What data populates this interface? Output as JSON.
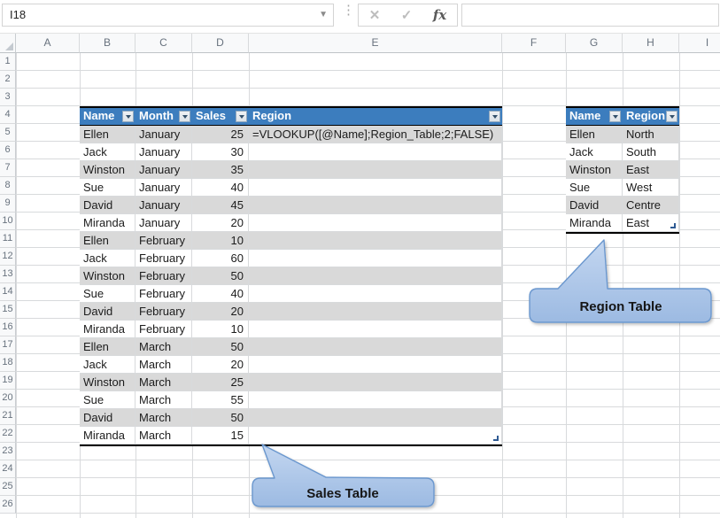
{
  "formula_bar": {
    "name_box_value": "I18",
    "name_box_dropdown_icon": "▼",
    "cancel_icon": "✕",
    "enter_icon": "✓",
    "insert_function_icon": "fx",
    "formula_input_value": ""
  },
  "sheet": {
    "column_headers": [
      "A",
      "B",
      "C",
      "D",
      "E",
      "F",
      "G",
      "H",
      "I"
    ],
    "row_headers": [
      "1",
      "2",
      "3",
      "4",
      "5",
      "6",
      "7",
      "8",
      "9",
      "10",
      "11",
      "12",
      "13",
      "14",
      "15",
      "16",
      "17",
      "18",
      "19",
      "20",
      "21",
      "22",
      "23",
      "24",
      "25",
      "26"
    ]
  },
  "sales_table": {
    "headers": [
      "Name",
      "Month",
      "Sales",
      "Region"
    ],
    "rows": [
      [
        "Ellen",
        "January",
        "25",
        "=VLOOKUP([@Name];Region_Table;2;FALSE)"
      ],
      [
        "Jack",
        "January",
        "30",
        ""
      ],
      [
        "Winston",
        "January",
        "35",
        ""
      ],
      [
        "Sue",
        "January",
        "40",
        ""
      ],
      [
        "David",
        "January",
        "45",
        ""
      ],
      [
        "Miranda",
        "January",
        "20",
        ""
      ],
      [
        "Ellen",
        "February",
        "10",
        ""
      ],
      [
        "Jack",
        "February",
        "60",
        ""
      ],
      [
        "Winston",
        "February",
        "50",
        ""
      ],
      [
        "Sue",
        "February",
        "40",
        ""
      ],
      [
        "David",
        "February",
        "20",
        ""
      ],
      [
        "Miranda",
        "February",
        "10",
        ""
      ],
      [
        "Ellen",
        "March",
        "50",
        ""
      ],
      [
        "Jack",
        "March",
        "20",
        ""
      ],
      [
        "Winston",
        "March",
        "25",
        ""
      ],
      [
        "Sue",
        "March",
        "55",
        ""
      ],
      [
        "David",
        "March",
        "50",
        ""
      ],
      [
        "Miranda",
        "March",
        "15",
        ""
      ]
    ]
  },
  "region_table": {
    "headers": [
      "Name",
      "Region"
    ],
    "rows": [
      [
        "Ellen",
        "North"
      ],
      [
        "Jack",
        "South"
      ],
      [
        "Winston",
        "East"
      ],
      [
        "Sue",
        "West"
      ],
      [
        "David",
        "Centre"
      ],
      [
        "Miranda",
        "East"
      ]
    ]
  },
  "callouts": {
    "sales_label": "Sales Table",
    "region_label": "Region Table"
  },
  "colors": {
    "table_header_blue": "#3c7dbe",
    "band_gray": "#d9d9d9",
    "callout_fill_top": "#bdd2ee",
    "callout_fill_bottom": "#9cbae2",
    "callout_border": "#6b97ce"
  }
}
